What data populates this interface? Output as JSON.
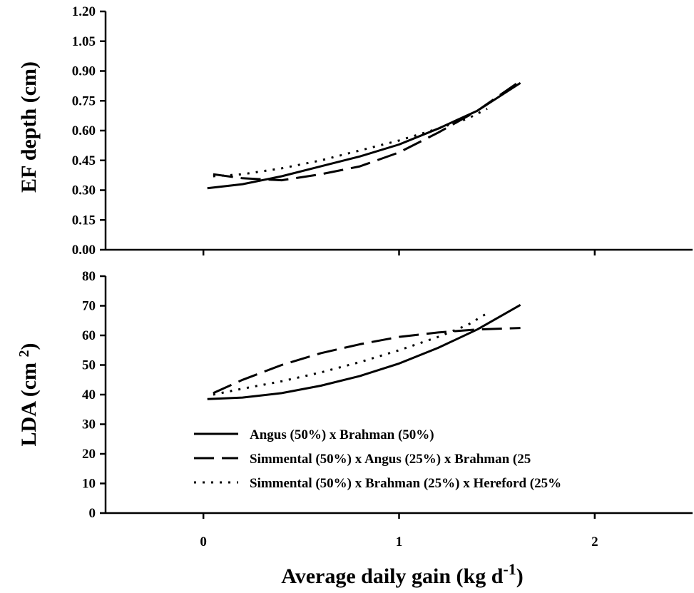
{
  "chart_data": [
    {
      "type": "line",
      "ylabel": "EF depth (cm)",
      "ylim": [
        0,
        1.2
      ],
      "yticks": [
        "0.00",
        "0.15",
        "0.30",
        "0.45",
        "0.60",
        "0.75",
        "0.90",
        "1.05",
        "1.20"
      ],
      "xlim": [
        -0.5,
        2.5
      ],
      "series": [
        {
          "name": "Angus (50%) x Brahman (50%)",
          "style": "solid",
          "x": [
            0.02,
            0.2,
            0.4,
            0.6,
            0.8,
            1.0,
            1.2,
            1.4,
            1.62
          ],
          "y": [
            0.31,
            0.33,
            0.37,
            0.42,
            0.47,
            0.53,
            0.61,
            0.7,
            0.84
          ]
        },
        {
          "name": "Simmental (50%) x Angus (25%) x Brahman (25",
          "style": "long-dash",
          "x": [
            0.05,
            0.2,
            0.4,
            0.6,
            0.8,
            1.0,
            1.2,
            1.4,
            1.62
          ],
          "y": [
            0.38,
            0.36,
            0.35,
            0.38,
            0.42,
            0.49,
            0.59,
            0.7,
            0.85
          ]
        },
        {
          "name": "Simmental (50%) x Brahman (25%) x Hereford (25%",
          "style": "dotted",
          "x": [
            0.05,
            0.2,
            0.4,
            0.6,
            0.8,
            1.0,
            1.2,
            1.35,
            1.45
          ],
          "y": [
            0.37,
            0.38,
            0.41,
            0.45,
            0.5,
            0.55,
            0.61,
            0.66,
            0.71
          ]
        }
      ]
    },
    {
      "type": "line",
      "ylabel": "LDA (cm ",
      "ylabel_sup": "2",
      "ylabel_tail": ")",
      "ylim": [
        0,
        80
      ],
      "yticks": [
        "0",
        "10",
        "20",
        "30",
        "40",
        "50",
        "60",
        "70",
        "80"
      ],
      "xlim": [
        -0.5,
        2.5
      ],
      "xticks": [
        0,
        1,
        2
      ],
      "xticklabels": [
        "0",
        "1",
        "2"
      ],
      "xlabel": "Average daily gain (kg d",
      "xlabel_sup": "-1",
      "xlabel_tail": ")",
      "series": [
        {
          "name": "Angus (50%) x Brahman (50%)",
          "style": "solid",
          "x": [
            0.02,
            0.2,
            0.4,
            0.6,
            0.8,
            1.0,
            1.2,
            1.4,
            1.62
          ],
          "y": [
            38.5,
            39,
            40.5,
            43,
            46.3,
            50.5,
            55.8,
            62,
            70.3
          ]
        },
        {
          "name": "Simmental (50%) x Angus (25%) x Brahman (25",
          "style": "long-dash",
          "x": [
            0.05,
            0.2,
            0.4,
            0.6,
            0.8,
            1.0,
            1.2,
            1.4,
            1.62
          ],
          "y": [
            40.5,
            45,
            50,
            54,
            57,
            59.5,
            61,
            62,
            62.5
          ]
        },
        {
          "name": "Simmental (50%) x Brahman (25%) x Hereford (25%",
          "style": "dotted",
          "x": [
            0.05,
            0.2,
            0.4,
            0.6,
            0.8,
            1.0,
            1.2,
            1.35,
            1.45
          ],
          "y": [
            40,
            42,
            44.5,
            47.5,
            51,
            55,
            59.5,
            63.5,
            67.5
          ]
        }
      ],
      "legend": {
        "placement": "lower-left",
        "entries": [
          "Angus (50%) x Brahman (50%)",
          "Simmental (50%) x Angus (25%) x Brahman (25",
          "Simmental (50%) x Brahman (25%) x Hereford (25%"
        ]
      }
    }
  ]
}
